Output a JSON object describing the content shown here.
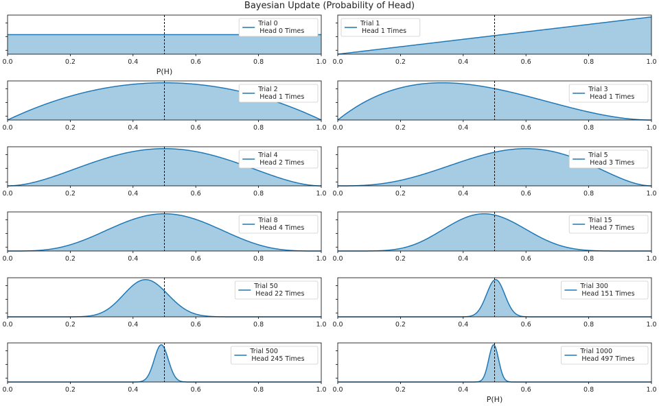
{
  "chart_data": {
    "type": "area",
    "title": "Bayesian Update (Probability of Head)",
    "xlabel": "P(H)",
    "xlim": [
      0,
      1
    ],
    "x_ticks": [
      "0.0",
      "0.2",
      "0.4",
      "0.6",
      "0.8",
      "1.0"
    ],
    "reference_line_x": 0.5,
    "series_color": "#1f77b4",
    "fill_color": "#a6cce3",
    "panels": [
      {
        "trial": 0,
        "heads": 0,
        "legend_line1": "Trial 0",
        "legend_line2": "Head 0 Times",
        "legend_pos": "top-right",
        "show_xlabel": true
      },
      {
        "trial": 1,
        "heads": 1,
        "legend_line1": "Trial 1",
        "legend_line2": "Head 1 Times",
        "legend_pos": "top-left",
        "show_xlabel": false
      },
      {
        "trial": 2,
        "heads": 1,
        "legend_line1": "Trial 2",
        "legend_line2": "Head 1 Times",
        "legend_pos": "top-right",
        "show_xlabel": false
      },
      {
        "trial": 3,
        "heads": 1,
        "legend_line1": "Trial 3",
        "legend_line2": "Head 1 Times",
        "legend_pos": "top-right",
        "show_xlabel": false
      },
      {
        "trial": 4,
        "heads": 2,
        "legend_line1": "Trial 4",
        "legend_line2": "Head 2 Times",
        "legend_pos": "top-right",
        "show_xlabel": false
      },
      {
        "trial": 5,
        "heads": 3,
        "legend_line1": "Trial 5",
        "legend_line2": "Head 3 Times",
        "legend_pos": "top-right",
        "show_xlabel": false
      },
      {
        "trial": 8,
        "heads": 4,
        "legend_line1": "Trial 8",
        "legend_line2": "Head 4 Times",
        "legend_pos": "top-right",
        "show_xlabel": false
      },
      {
        "trial": 15,
        "heads": 7,
        "legend_line1": "Trial 15",
        "legend_line2": "Head 7 Times",
        "legend_pos": "top-right",
        "show_xlabel": false
      },
      {
        "trial": 50,
        "heads": 22,
        "legend_line1": "Trial 50",
        "legend_line2": "Head 22 Times",
        "legend_pos": "top-right",
        "show_xlabel": false
      },
      {
        "trial": 300,
        "heads": 151,
        "legend_line1": "Trial 300",
        "legend_line2": "Head 151 Times",
        "legend_pos": "top-right",
        "show_xlabel": false
      },
      {
        "trial": 500,
        "heads": 245,
        "legend_line1": "Trial 500",
        "legend_line2": "Head 245 Times",
        "legend_pos": "top-right",
        "show_xlabel": false
      },
      {
        "trial": 1000,
        "heads": 497,
        "legend_line1": "Trial 1000",
        "legend_line2": "Head 497 Times",
        "legend_pos": "top-right",
        "show_xlabel": true
      }
    ]
  }
}
